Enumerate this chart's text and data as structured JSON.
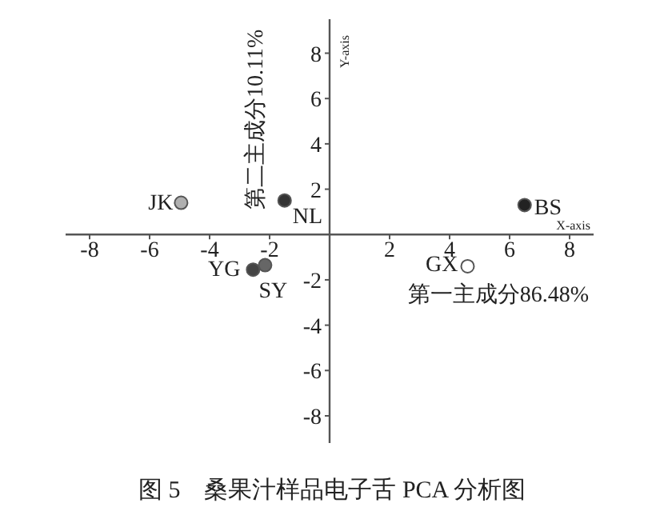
{
  "chart_data": {
    "type": "scatter",
    "title": "图 5　桑果汁样品电子舌 PCA 分析图",
    "xlabel": "第一主成分86.48%",
    "ylabel": "第二主成分10.11%",
    "annotations": [
      "X-axis",
      "Y-axis"
    ],
    "xlim": [
      -8.8,
      8.8
    ],
    "ylim": [
      -9.2,
      9.5
    ],
    "xticks": [
      -8,
      -6,
      -4,
      -2,
      2,
      4,
      6,
      8
    ],
    "yticks": [
      -8,
      -6,
      -4,
      -2,
      2,
      4,
      6,
      8
    ],
    "marker": "circle",
    "grid": false,
    "series": [
      {
        "name": "JK",
        "color": "#b0b0b0",
        "x": [
          -4.95
        ],
        "values": [
          1.4
        ]
      },
      {
        "name": "NL",
        "color": "#333333",
        "x": [
          -1.5
        ],
        "values": [
          1.5
        ]
      },
      {
        "name": "BS",
        "color": "#222222",
        "x": [
          6.5
        ],
        "values": [
          1.3
        ]
      },
      {
        "name": "YG",
        "color": "#444444",
        "x": [
          -2.55
        ],
        "values": [
          -1.55
        ]
      },
      {
        "name": "SY",
        "color": "#666666",
        "x": [
          -2.15
        ],
        "values": [
          -1.35
        ]
      },
      {
        "name": "GX",
        "color": "#ffffff",
        "x": [
          4.6
        ],
        "values": [
          -1.4
        ]
      }
    ]
  }
}
